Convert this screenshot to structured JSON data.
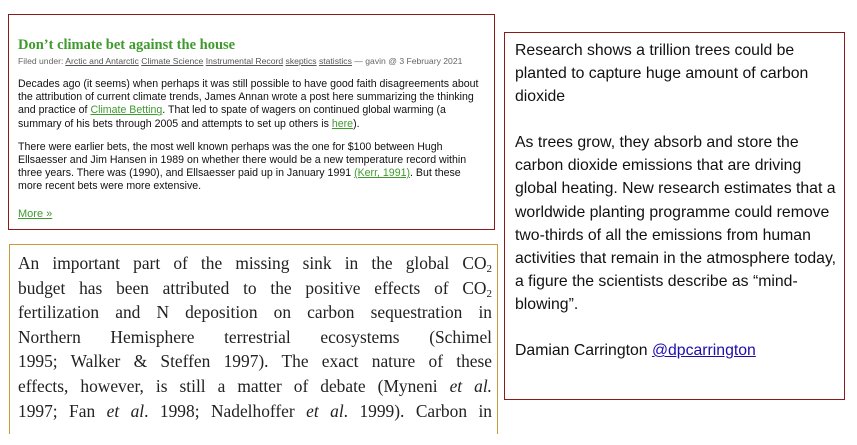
{
  "blog": {
    "title": "Don’t climate bet against the house",
    "filed_prefix": "Filed under: ",
    "categories": [
      "Arctic and Antarctic",
      "Climate Science",
      "Instrumental Record",
      "skeptics",
      "statistics"
    ],
    "author_date": " — gavin @ 3 February 2021",
    "para1_a": "Decades ago (it seems) when perhaps it was still possible to have good faith disagreements about the attribution of current climate trends, James Annan wrote a post here summarizing the thinking and practice of ",
    "para1_link": "Climate Betting",
    "para1_b": ". That led to spate of wagers on continued global warming (a summary of his bets through 2005 and attempts to set up others is ",
    "para1_link2": "here",
    "para1_c": ").",
    "para2_a": "There were earlier bets, the most well known perhaps was the one for $100 between Hugh Ellsaesser and Jim Hansen in 1989 on whether there would be a new temperature record within three years. There was (1990), and Ellsaesser paid up in January 1991 ",
    "para2_link": "(Kerr, 1991)",
    "para2_b": ". But these more recent bets were more extensive.",
    "more_link": "More »"
  },
  "paper": {
    "lines": [
      [
        "An important part of the missing sink in the global CO",
        "2",
        ""
      ],
      [
        "budget has been attributed to the positive effects of CO",
        "2",
        ""
      ],
      [
        "fertilization and N deposition on carbon sequestration in",
        "",
        ""
      ],
      [
        "Northern Hemisphere terrestrial ecosystems (Schimel",
        "",
        ""
      ],
      [
        "1995; Walker & Steffen 1997). The exact nature of these",
        "",
        ""
      ]
    ],
    "line6_a": "effects, however, is still a matter of debate (Myneni ",
    "line6_i": "et al.",
    "line7_a": "1997; Fan ",
    "line7_i1": "et al",
    "line7_b": ". 1998; Nadelhoffer ",
    "line7_i2": "et al",
    "line7_c": ". 1999). Carbon in"
  },
  "news": {
    "headline": "Research shows a trillion trees could be planted to capture huge amount of carbon dioxide",
    "body": "As trees grow, they absorb and store the carbon dioxide emissions that are driving global heating. New research estimates that a worldwide planting programme could remove two-thirds of all the emissions from human activities that remain in the atmosphere today, a figure the scientists describe as “mind-blowing”.",
    "author": "Damian Carrington ",
    "handle": "@dpcarrington"
  }
}
